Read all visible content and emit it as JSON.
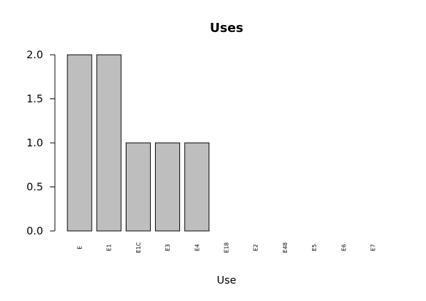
{
  "chart_data": {
    "type": "bar",
    "title": "Uses",
    "xlabel": "Use",
    "ylabel": "",
    "ylim": [
      0,
      2
    ],
    "yticks": [
      "0.0",
      "0.5",
      "1.0",
      "1.5",
      "2.0"
    ],
    "categories": [
      "E",
      "E1",
      "E1C",
      "E3",
      "E4",
      "E18",
      "E2",
      "E48",
      "E5",
      "E6",
      "E7"
    ],
    "values": [
      2,
      2,
      1,
      1,
      1,
      0,
      0,
      0,
      0,
      0,
      0
    ],
    "bar_color": "#bebebe",
    "bar_edge_color": "#000000",
    "grid": false,
    "legend": "none"
  }
}
